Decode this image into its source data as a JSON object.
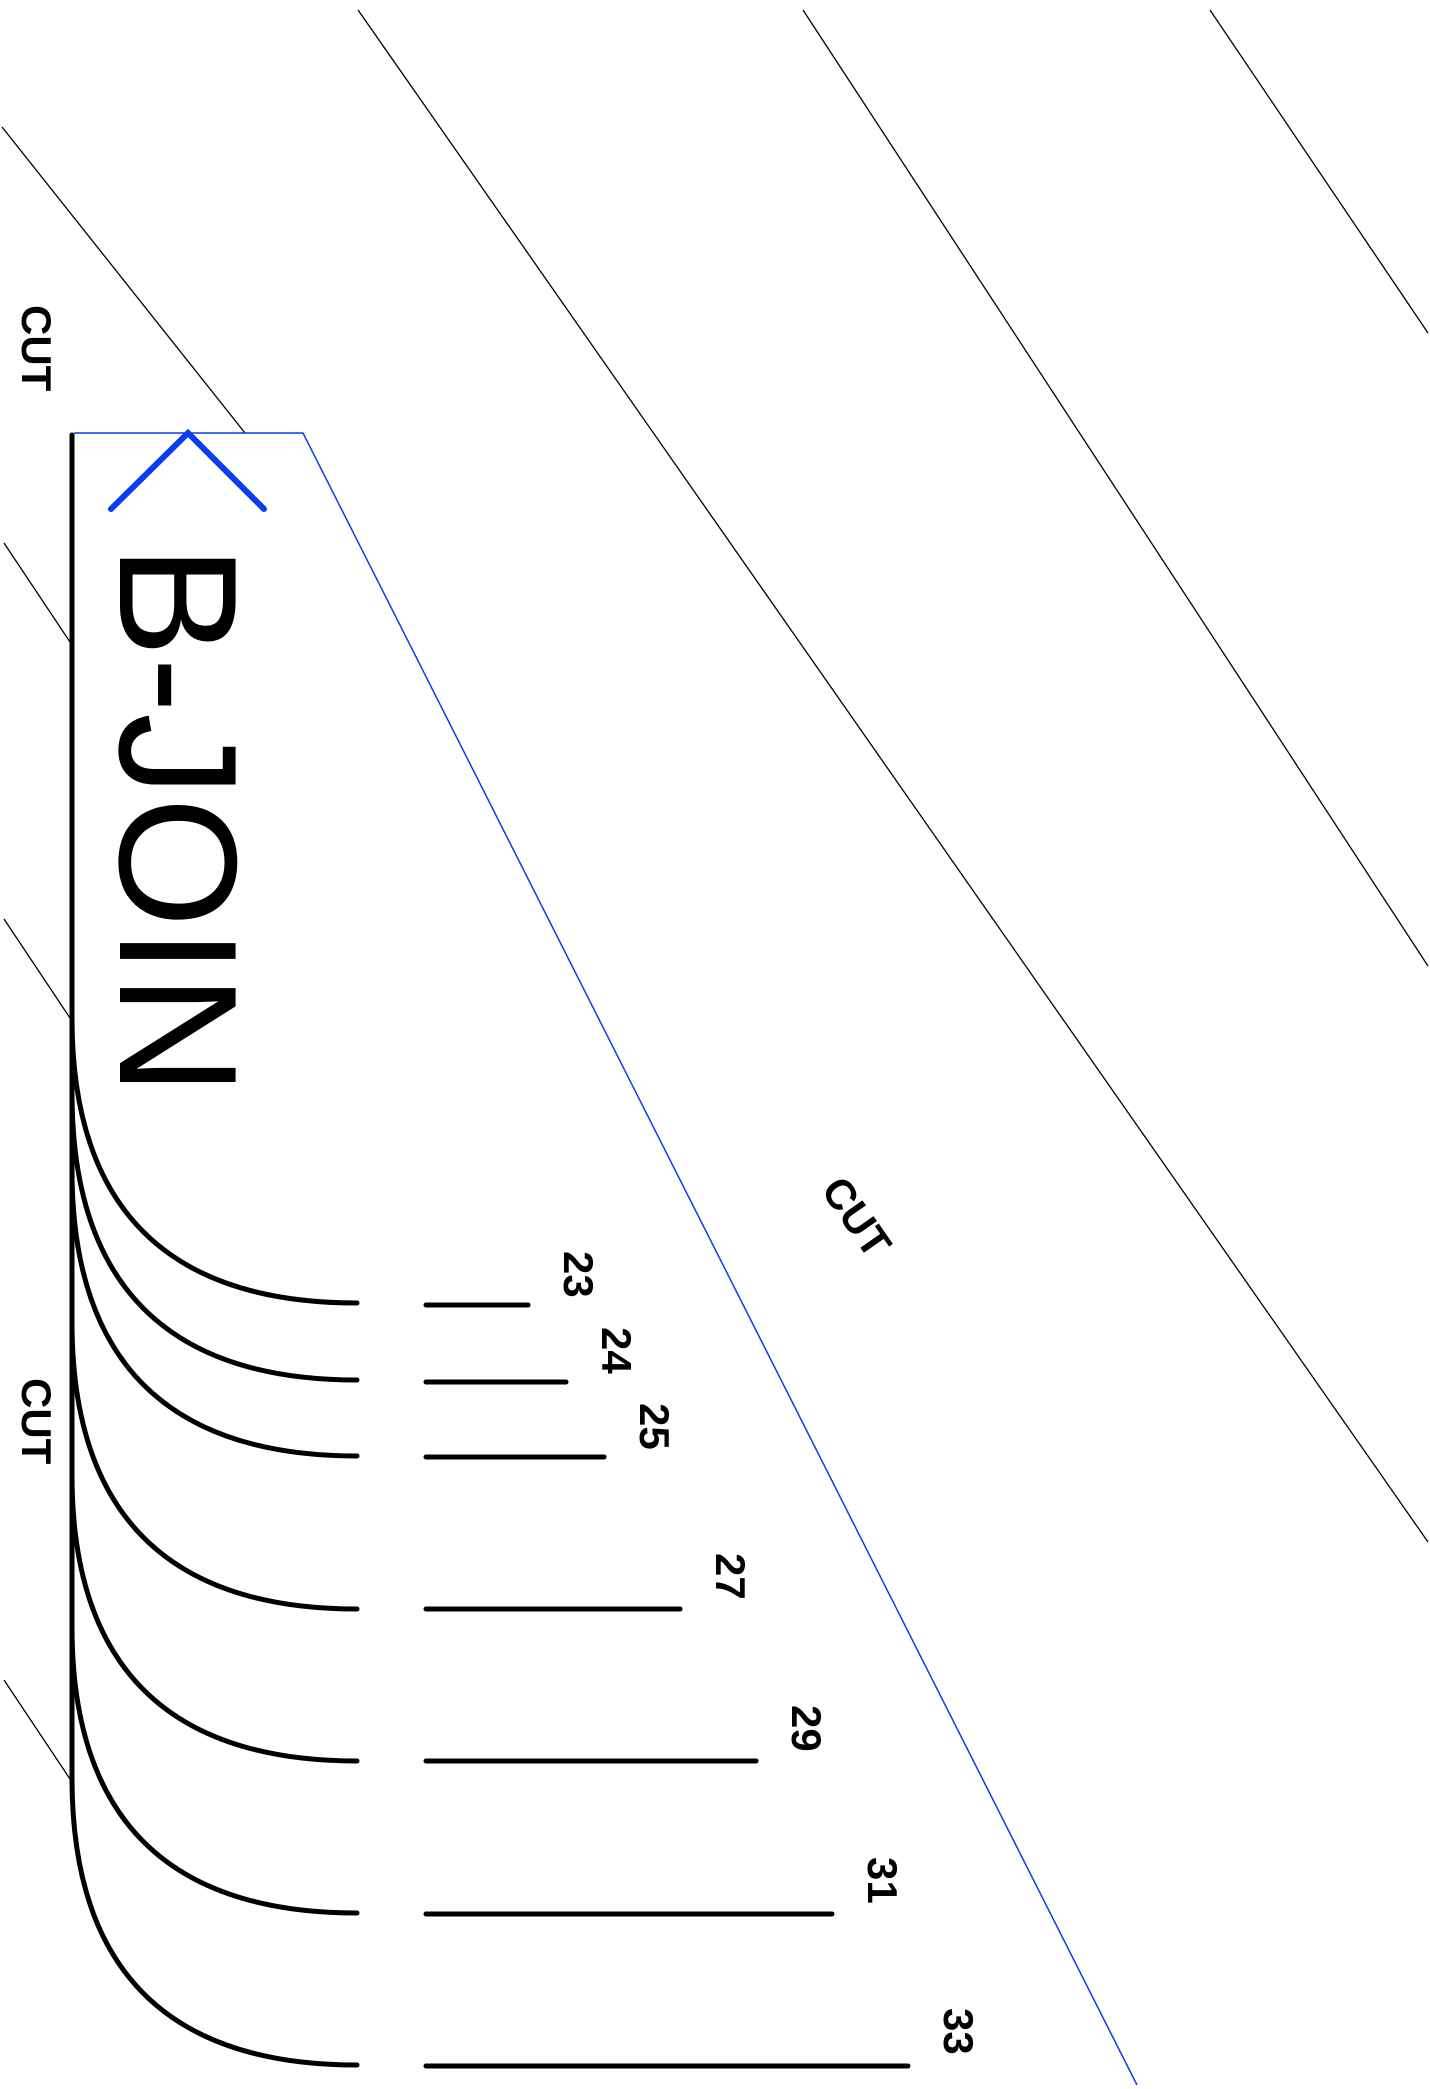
{
  "colors": {
    "guide": "#0a3cf0",
    "line": "#000000"
  },
  "title": "B-JOIN",
  "cut_labels": [
    "CUT",
    "CUT",
    "CUT"
  ],
  "size_labels": [
    "23",
    "24",
    "25",
    "27",
    "29",
    "31",
    "33"
  ]
}
